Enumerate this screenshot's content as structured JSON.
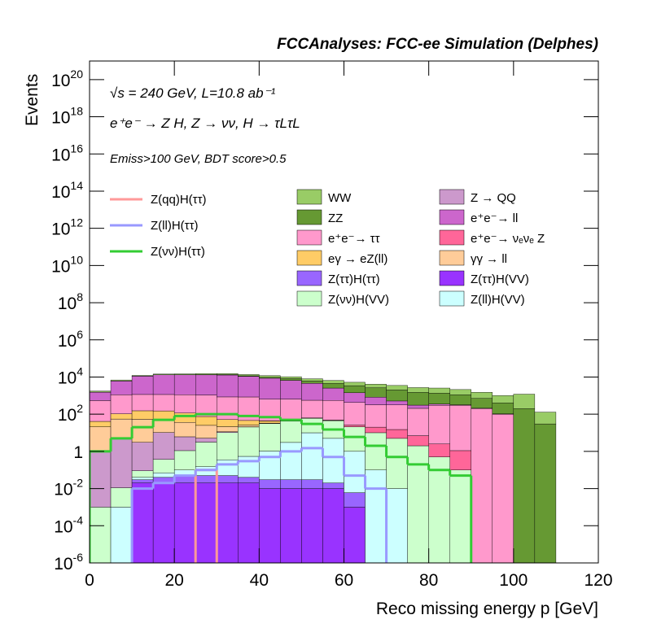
{
  "chart_data": {
    "type": "stacked-histogram",
    "title": "FCCAnalyses: FCC-ee Simulation (Delphes)",
    "annotations": [
      "√s = 240 GeV, L=10.8 ab⁻¹",
      "e⁺e⁻ → Z H, Z → νν, H → τLτL",
      "Emiss>100 GeV, BDT score>0.5"
    ],
    "xlabel": "Reco missing energy p [GeV]",
    "ylabel": "Events",
    "log_y": true,
    "bins": [
      0,
      5,
      10,
      15,
      20,
      25,
      30,
      35,
      40,
      45,
      50,
      55,
      60,
      65,
      70,
      75,
      80,
      85,
      90,
      95,
      100,
      105,
      110,
      115,
      120
    ],
    "xlim": [
      0,
      120
    ],
    "xticks": [
      0,
      20,
      40,
      60,
      80,
      100,
      120
    ],
    "ylim": [
      1e-06,
      1e+21
    ],
    "yticks": [
      {
        "value": 1e-06,
        "label": "10",
        "exponent": "-6"
      },
      {
        "value": 0.0001,
        "label": "10",
        "exponent": "-4"
      },
      {
        "value": 0.01,
        "label": "10",
        "exponent": "-2"
      },
      1,
      {
        "value": 100,
        "label": "10",
        "exponent": "2"
      },
      {
        "value": 10000.0,
        "label": "10",
        "exponent": "4"
      },
      {
        "value": 1000000.0,
        "label": "10",
        "exponent": "6"
      },
      {
        "value": 100000000.0,
        "label": "10",
        "exponent": "8"
      },
      {
        "value": 10000000000.0,
        "label": "10",
        "exponent": "10"
      },
      {
        "value": 1000000000000.0,
        "label": "10",
        "exponent": "12"
      },
      {
        "value": 100000000000000.0,
        "label": "10",
        "exponent": "14"
      },
      {
        "value": 1e+16,
        "label": "10",
        "exponent": "16"
      },
      {
        "value": 1e+18,
        "label": "10",
        "exponent": "18"
      },
      {
        "value": 1e+20,
        "label": "10",
        "exponent": "20"
      }
    ],
    "series": [
      {
        "name": "WW",
        "color": "#99cc66",
        "values": [
          200,
          800,
          1000,
          1200,
          1500,
          1800,
          2000,
          2000,
          2200,
          2200,
          2000,
          2000,
          1800,
          1500,
          1500,
          1200,
          1200,
          1000,
          800,
          600,
          1000,
          100,
          0,
          0
        ]
      },
      {
        "name": "ZZ",
        "color": "#669933",
        "values": [
          5,
          20,
          50,
          100,
          200,
          300,
          500,
          800,
          1000,
          1500,
          1500,
          2000,
          2000,
          1800,
          1500,
          1200,
          1000,
          800,
          500,
          300,
          200,
          30,
          0,
          0
        ]
      },
      {
        "name": "e⁺e⁻→ ττ",
        "color": "#ff99cc",
        "values": [
          500,
          1000,
          1000,
          1000,
          1000,
          1000,
          800,
          800,
          600,
          600,
          500,
          500,
          400,
          300,
          300,
          200,
          300,
          300,
          200,
          100,
          0,
          0,
          0,
          0
        ]
      },
      {
        "name": "eγ → eZ(ll)",
        "color": "#ffcc66",
        "values": [
          20,
          50,
          100,
          100,
          80,
          50,
          30,
          20,
          10,
          5,
          2,
          1,
          0,
          0,
          0,
          0,
          0,
          0,
          0,
          0,
          0,
          0,
          0,
          0
        ]
      },
      {
        "name": "Z(ττ)H(ττ)",
        "color": "#9966ff",
        "values": [
          0,
          0,
          0.01,
          0.02,
          0.03,
          0.03,
          0.03,
          0.02,
          0.02,
          0.02,
          0.02,
          0.01,
          0.005,
          0,
          0,
          0,
          0,
          0,
          0,
          0,
          0,
          0,
          0,
          0
        ]
      },
      {
        "name": "Z(νν)H(VV)",
        "color": "#ccffcc",
        "values": [
          0.001,
          0.01,
          0.05,
          0.3,
          1,
          3,
          10,
          20,
          30,
          40,
          50,
          40,
          20,
          10,
          5,
          2,
          0.5,
          0.1,
          0,
          0,
          0,
          0,
          0,
          0
        ]
      },
      {
        "name": "Z → QQ",
        "color": "#cc99cc",
        "values": [
          1,
          5,
          3,
          10,
          5,
          2,
          1,
          0.5,
          0.3,
          0.2,
          0.1,
          0,
          0,
          0,
          0,
          0,
          0,
          0,
          0,
          0,
          0,
          0,
          0,
          0
        ]
      },
      {
        "name": "e⁺e⁻→ ll",
        "color": "#cc66cc",
        "values": [
          1000,
          5000,
          10000,
          12000,
          12000,
          12000,
          12000,
          10000,
          8000,
          6000,
          4000,
          2000,
          1000,
          500,
          200,
          100,
          50,
          20,
          10,
          5,
          0,
          0,
          0,
          0
        ]
      },
      {
        "name": "e⁺e⁻→ νₑνₑ Z",
        "color": "#ff6699",
        "values": [
          0,
          0,
          0,
          0,
          0,
          0,
          0,
          0,
          1,
          1,
          1,
          2,
          5,
          10,
          10,
          5,
          2,
          1,
          0,
          0,
          0,
          0,
          0,
          0
        ]
      },
      {
        "name": "γγ → ll",
        "color": "#ffcc99",
        "values": [
          20,
          50,
          50,
          40,
          30,
          20,
          10,
          5,
          2,
          1,
          0,
          0,
          0,
          0,
          0,
          0,
          0,
          0,
          0,
          0,
          0,
          0,
          0,
          0
        ]
      },
      {
        "name": "Z(ττ)H(VV)",
        "color": "#9933ff",
        "values": [
          0,
          0,
          0.02,
          0.02,
          0.02,
          0.02,
          0.02,
          0.02,
          0.01,
          0.01,
          0.01,
          0.01,
          0.001,
          0,
          0,
          0,
          0,
          0,
          0,
          0,
          0,
          0,
          0,
          0
        ]
      },
      {
        "name": "Z(ll)H(VV)",
        "color": "#ccffff",
        "values": [
          0,
          0.001,
          0.01,
          0.03,
          0.05,
          0.1,
          0.3,
          0.5,
          1,
          3,
          10,
          5,
          1,
          0.1,
          0.01,
          0,
          0,
          0,
          0,
          0,
          0,
          0,
          0,
          0
        ]
      }
    ],
    "lines": [
      {
        "name": "Z(qq)H(ττ)",
        "color": "#ff9999",
        "values": [
          null,
          null,
          null,
          null,
          null,
          0.1,
          null,
          null,
          null,
          null,
          null,
          null,
          null,
          null,
          null,
          null,
          null,
          null,
          null,
          null,
          null,
          null,
          null,
          null
        ]
      },
      {
        "name": "Z(ll)H(ττ)",
        "color": "#9999ff",
        "values": [
          null,
          null,
          0.01,
          0.02,
          0.05,
          0.1,
          0.2,
          0.3,
          0.5,
          1,
          1.5,
          0.5,
          0.05,
          0.01,
          null,
          null,
          null,
          null,
          null,
          null,
          null,
          null,
          null,
          null
        ]
      },
      {
        "name": "Z(νν)H(ττ)",
        "color": "#33cc33",
        "values": [
          1,
          5,
          20,
          50,
          80,
          100,
          100,
          80,
          70,
          50,
          30,
          15,
          6,
          2,
          0.5,
          0.2,
          0.1,
          0.05,
          null,
          null,
          null,
          null,
          null,
          null
        ]
      }
    ]
  }
}
